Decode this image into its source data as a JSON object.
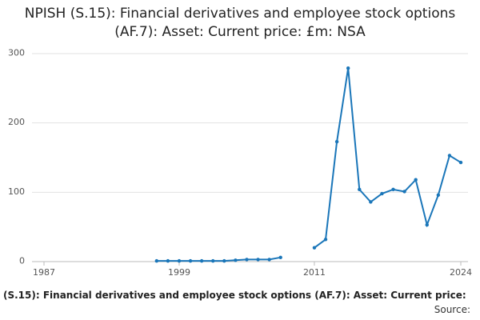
{
  "chart_data": {
    "type": "line",
    "title": "NPISH (S.15): Financial derivatives and employee stock options (AF.7): Asset: Current price: £m: NSA",
    "footer": "(S.15): Financial derivatives and employee stock options (AF.7): Asset: Current price:",
    "source": "Source:",
    "x": [
      1997,
      1998,
      1999,
      2000,
      2001,
      2002,
      2003,
      2004,
      2005,
      2006,
      2007,
      2008,
      2009,
      2010,
      2011,
      2012,
      2013,
      2014,
      2015,
      2016,
      2017,
      2018,
      2019,
      2020,
      2021,
      2022,
      2023,
      2024
    ],
    "series": [
      {
        "color": "#1a76b9",
        "values": [
          1,
          1,
          1,
          1,
          1,
          1,
          1,
          2,
          3,
          3,
          3,
          6,
          null,
          null,
          20,
          32,
          173,
          279,
          104,
          86,
          98,
          104,
          101,
          118,
          53,
          96,
          153,
          143
        ]
      }
    ],
    "xlim": [
      1987,
      2024
    ],
    "xticks": [
      1987,
      1999,
      2011,
      2024
    ],
    "ylim": [
      0,
      300
    ],
    "yticks": [
      0,
      100,
      200,
      300
    ],
    "grid": true
  }
}
